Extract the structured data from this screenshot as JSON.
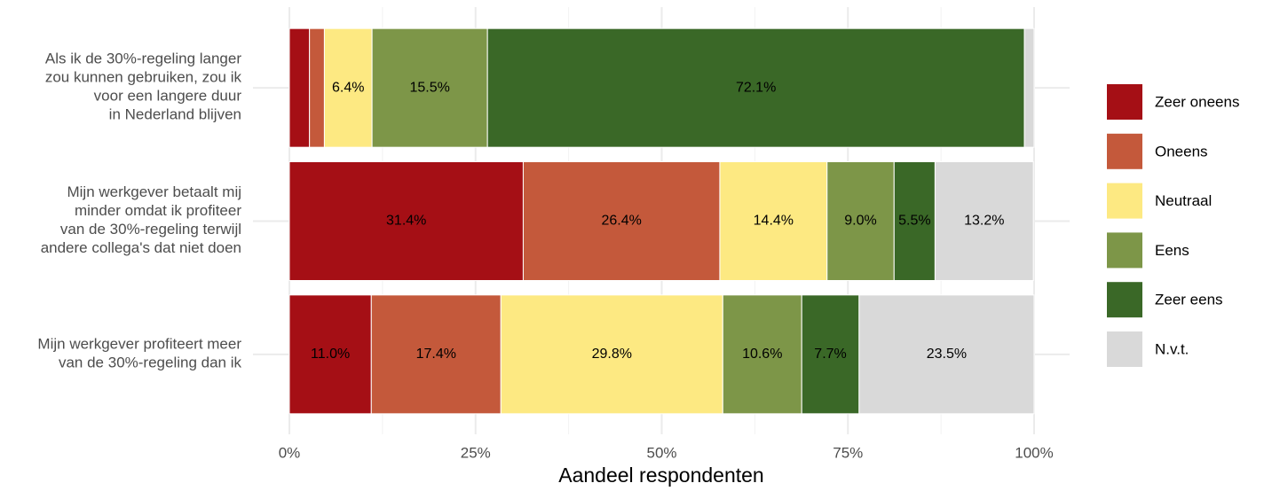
{
  "chart_data": {
    "type": "stacked_barh",
    "xlabel": "Aandeel respondenten",
    "categories": [
      "Als ik de 30%-regeling langer\nzou kunnen gebruiken, zou ik\nvoor een langere duur\nin Nederland blijven",
      "Mijn werkgever betaalt mij\nminder omdat ik profiteer\nvan de 30%-regeling terwijl\nandere collega's dat niet doen",
      "Mijn werkgever profiteert meer\nvan de 30%-regeling dan ik"
    ],
    "series": [
      {
        "name": "Zeer oneens",
        "color": "#a50f15",
        "values": [
          2.7,
          31.4,
          11.0
        ],
        "value_labels": [
          null,
          "31.4%",
          "11.0%"
        ]
      },
      {
        "name": "Oneens",
        "color": "#c4593b",
        "values": [
          2.0,
          26.4,
          17.4
        ],
        "value_labels": [
          null,
          "26.4%",
          "17.4%"
        ]
      },
      {
        "name": "Neutraal",
        "color": "#fde982",
        "values": [
          6.4,
          14.4,
          29.8
        ],
        "value_labels": [
          "6.4%",
          "14.4%",
          "29.8%"
        ]
      },
      {
        "name": "Eens",
        "color": "#7d9648",
        "values": [
          15.5,
          9.0,
          10.6
        ],
        "value_labels": [
          "15.5%",
          "9.0%",
          "10.6%"
        ]
      },
      {
        "name": "Zeer eens",
        "color": "#3a6827",
        "values": [
          72.1,
          5.5,
          7.7
        ],
        "value_labels": [
          "72.1%",
          "5.5%",
          "7.7%"
        ]
      },
      {
        "name": "N.v.t.",
        "color": "#d9d9d9",
        "values": [
          1.3,
          13.2,
          23.5
        ],
        "value_labels": [
          null,
          "13.2%",
          "23.5%"
        ]
      }
    ],
    "xlim": [
      0,
      100
    ],
    "xticks": [
      {
        "value": 0,
        "label": "0%"
      },
      {
        "value": 25,
        "label": "25%"
      },
      {
        "value": 50,
        "label": "50%"
      },
      {
        "value": 75,
        "label": "75%"
      },
      {
        "value": 100,
        "label": "100%"
      }
    ],
    "grid": true,
    "legend": "right"
  }
}
